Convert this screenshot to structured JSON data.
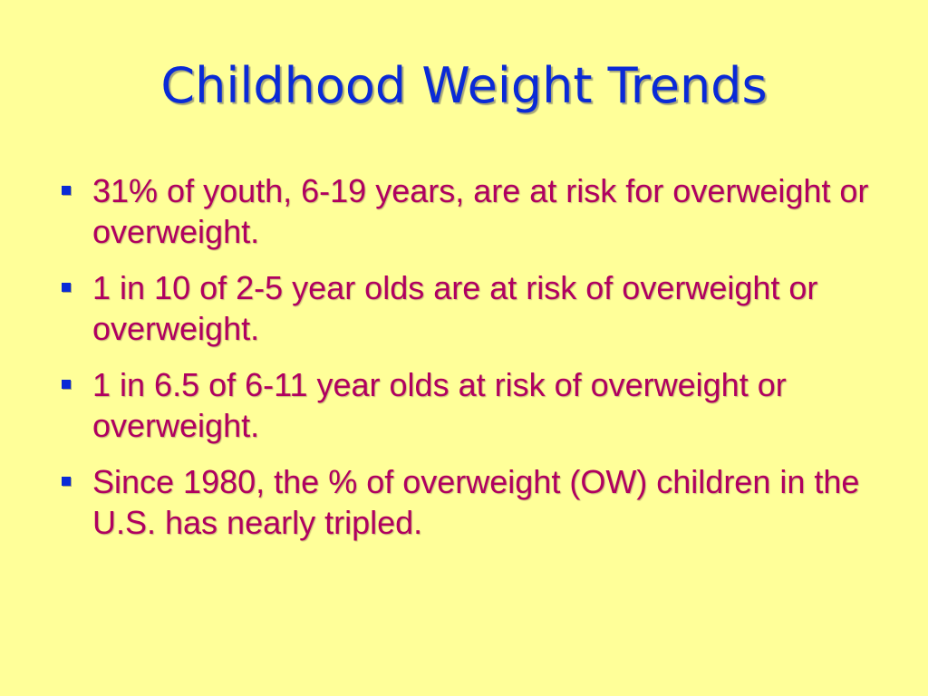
{
  "slide": {
    "title": "Childhood Weight Trends",
    "colors": {
      "background": "#FFFF99",
      "title": "#0A2AD6",
      "bullet_text": "#B00060",
      "bullet_marker": "#0A2AD6"
    },
    "bullets": [
      {
        "text": "31% of youth, 6-19 years, are at risk for overweight or overweight."
      },
      {
        "text": "1 in 10 of 2-5 year olds are at risk of overweight or overweight."
      },
      {
        "text": "1 in 6.5 of 6-11 year olds at risk of overweight or overweight."
      },
      {
        "text": "Since 1980, the % of overweight (OW) children in the U.S. has nearly tripled."
      }
    ]
  }
}
